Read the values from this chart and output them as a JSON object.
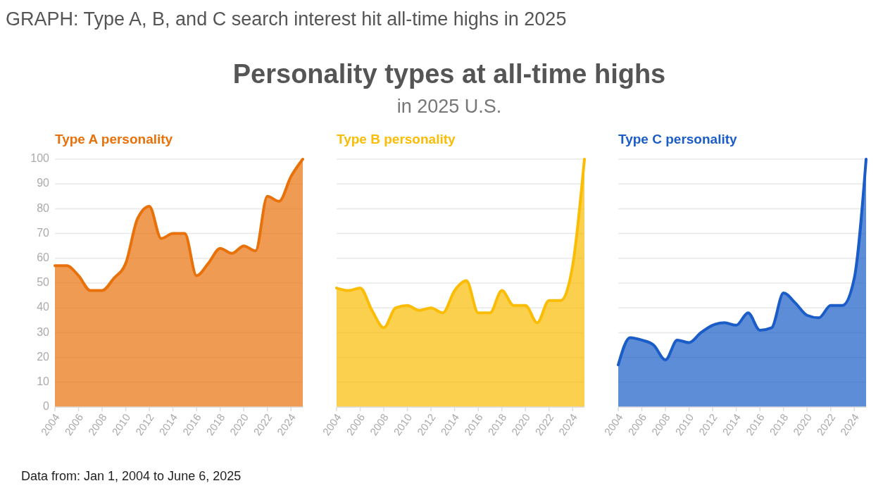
{
  "chart_data": [
    {
      "type": "area",
      "title": "Type A personality",
      "annotations": [
        "GRAPH: Type A, B, and C search interest hit all-time highs in 2025",
        "Personality types at all-time highs",
        "in 2025 U.S.",
        "Data from: Jan 1, 2004 to June 6, 2025"
      ],
      "x": [
        2004,
        2005,
        2006,
        2007,
        2008,
        2009,
        2010,
        2011,
        2012,
        2013,
        2014,
        2015,
        2016,
        2017,
        2018,
        2019,
        2020,
        2021,
        2022,
        2023,
        2024,
        2025
      ],
      "series": [
        {
          "color": "#e8710a",
          "values": [
            57,
            57,
            53,
            47,
            47,
            52,
            58,
            76,
            81,
            68,
            70,
            70,
            53,
            58,
            64,
            62,
            65,
            63,
            85,
            83,
            93,
            100
          ]
        }
      ],
      "xlim": [
        2004,
        2025
      ],
      "xticks": [
        2004,
        2006,
        2008,
        2010,
        2012,
        2014,
        2016,
        2018,
        2020,
        2022,
        2024
      ],
      "ylim": [
        0,
        100
      ],
      "yticks": [
        0,
        10,
        20,
        30,
        40,
        50,
        60,
        70,
        80,
        90,
        100
      ],
      "grid": "y"
    },
    {
      "type": "area",
      "title": "Type B personality",
      "x": [
        2004,
        2005,
        2006,
        2007,
        2008,
        2009,
        2010,
        2011,
        2012,
        2013,
        2014,
        2015,
        2016,
        2017,
        2018,
        2019,
        2020,
        2021,
        2022,
        2023,
        2024,
        2025
      ],
      "series": [
        {
          "color": "#fbbc04",
          "values": [
            48,
            47,
            48,
            39,
            32,
            40,
            41,
            39,
            40,
            38,
            47,
            51,
            38,
            38,
            47,
            41,
            41,
            34,
            43,
            43,
            57,
            100
          ]
        }
      ],
      "xlim": [
        2004,
        2025
      ],
      "xticks": [
        2004,
        2006,
        2008,
        2010,
        2012,
        2014,
        2016,
        2018,
        2020,
        2022,
        2024
      ],
      "ylim": [
        0,
        100
      ],
      "yticks": [
        0,
        10,
        20,
        30,
        40,
        50,
        60,
        70,
        80,
        90,
        100
      ],
      "grid": "y",
      "tick_labels": "x"
    },
    {
      "type": "area",
      "title": "Type C personality",
      "x": [
        2004,
        2005,
        2006,
        2007,
        2008,
        2009,
        2010,
        2011,
        2012,
        2013,
        2014,
        2015,
        2016,
        2017,
        2018,
        2019,
        2020,
        2021,
        2022,
        2023,
        2024,
        2025
      ],
      "series": [
        {
          "color": "#1a5cc8",
          "values": [
            17,
            28,
            27,
            25,
            19,
            27,
            26,
            30,
            33,
            34,
            33,
            38,
            31,
            32,
            46,
            42,
            37,
            36,
            41,
            41,
            52,
            100
          ]
        }
      ],
      "xlim": [
        2004,
        2025
      ],
      "xticks": [
        2004,
        2006,
        2008,
        2010,
        2012,
        2014,
        2016,
        2018,
        2020,
        2022,
        2024
      ],
      "ylim": [
        0,
        100
      ],
      "yticks": [
        0,
        10,
        20,
        30,
        40,
        50,
        60,
        70,
        80,
        90,
        100
      ],
      "grid": "y",
      "tick_labels": "x"
    }
  ]
}
